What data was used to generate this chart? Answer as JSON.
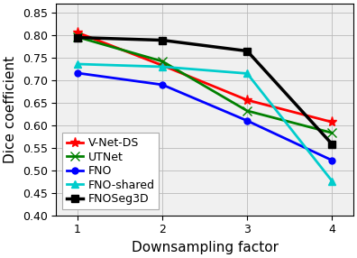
{
  "x": [
    1,
    2,
    3,
    4
  ],
  "series": {
    "V-Net-DS": {
      "values": [
        0.806,
        0.733,
        0.656,
        0.607
      ],
      "color": "#ff0000",
      "marker": "*",
      "marker_size": 8,
      "zorder": 3,
      "linewidth": 2.0
    },
    "UTNet": {
      "values": [
        0.796,
        0.742,
        0.632,
        0.583
      ],
      "color": "#008000",
      "marker": "x",
      "marker_size": 7,
      "zorder": 3,
      "linewidth": 2.0
    },
    "FNO": {
      "values": [
        0.716,
        0.69,
        0.61,
        0.522
      ],
      "color": "#0000ff",
      "marker": "o",
      "marker_size": 5,
      "zorder": 3,
      "linewidth": 2.0
    },
    "FNO-shared": {
      "values": [
        0.736,
        0.73,
        0.715,
        0.476
      ],
      "color": "#00cccc",
      "marker": "^",
      "marker_size": 6,
      "zorder": 3,
      "linewidth": 2.0
    },
    "FNOSeg3D": {
      "values": [
        0.795,
        0.789,
        0.765,
        0.558
      ],
      "color": "#000000",
      "marker": "s",
      "marker_size": 6,
      "zorder": 4,
      "linewidth": 2.5
    }
  },
  "xlabel": "Downsampling factor",
  "ylabel": "Dice coefficient",
  "ylim": [
    0.4,
    0.87
  ],
  "xlim": [
    0.75,
    4.25
  ],
  "yticks": [
    0.4,
    0.45,
    0.5,
    0.55,
    0.6,
    0.65,
    0.7,
    0.75,
    0.8,
    0.85
  ],
  "xticks": [
    1,
    2,
    3,
    4
  ],
  "grid": true,
  "legend_loc": "lower left",
  "legend_fontsize": 9.0,
  "xlabel_fontsize": 11,
  "ylabel_fontsize": 11,
  "tick_fontsize": 9,
  "background_color": "#f0f0f0"
}
